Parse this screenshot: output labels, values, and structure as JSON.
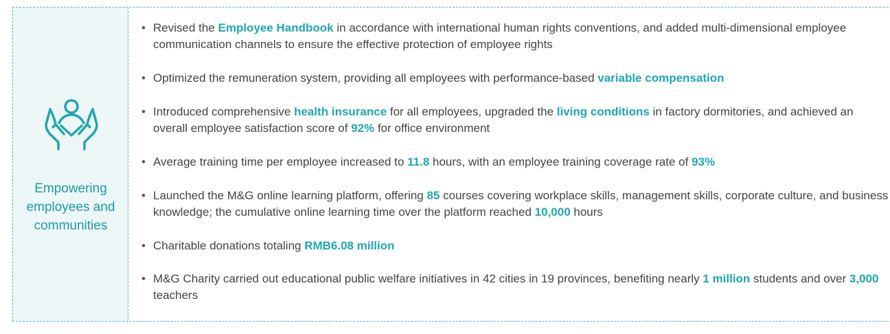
{
  "panel": {
    "label": "Empowering employees and communities"
  },
  "items": [
    [
      {
        "text": "Revised the "
      },
      {
        "text": "Employee Handbook",
        "bold": true
      },
      {
        "text": " in accordance with international human rights conventions, and added multi-dimensional employee communication channels to ensure the effective protection of employee rights"
      }
    ],
    [
      {
        "text": "Optimized the remuneration system, providing all employees with performance-based "
      },
      {
        "text": "variable compensation",
        "bold": true
      }
    ],
    [
      {
        "text": "Introduced comprehensive "
      },
      {
        "text": "health insurance",
        "bold": true
      },
      {
        "text": " for all employees, upgraded the "
      },
      {
        "text": "living conditions",
        "bold": true
      },
      {
        "text": " in factory dormitories, and achieved an overall employee satisfaction score of "
      },
      {
        "text": "92%",
        "bold": true
      },
      {
        "text": " for office environment"
      }
    ],
    [
      {
        "text": "Average training time per employee increased to "
      },
      {
        "text": "11.8",
        "bold": true
      },
      {
        "text": " hours, with an employee training coverage rate of "
      },
      {
        "text": "93%",
        "bold": true
      }
    ],
    [
      {
        "text": "Launched the M&G online learning platform, offering "
      },
      {
        "text": "85",
        "bold": true
      },
      {
        "text": " courses covering workplace skills, management skills, corporate culture, and business knowledge; the cumulative online learning time over the platform reached "
      },
      {
        "text": "10,000",
        "bold": true
      },
      {
        "text": " hours"
      }
    ],
    [
      {
        "text": "Charitable donations totaling "
      },
      {
        "text": "RMB6.08 million",
        "bold": true
      }
    ],
    [
      {
        "text": "M&G Charity carried out educational public welfare initiatives in 42 cities in 19 provinces, benefiting nearly "
      },
      {
        "text": "1 million",
        "bold": true
      },
      {
        "text": " students and over "
      },
      {
        "text": "3,000",
        "bold": true
      },
      {
        "text": " teachers"
      }
    ]
  ]
}
